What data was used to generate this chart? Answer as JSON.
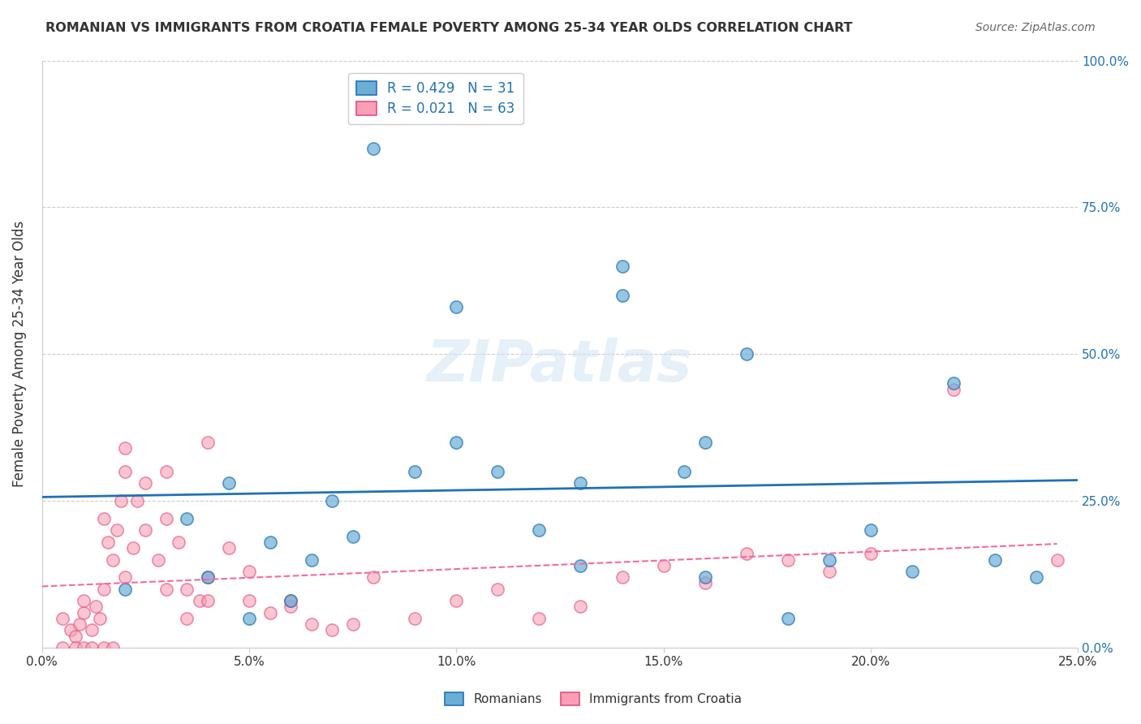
{
  "title": "ROMANIAN VS IMMIGRANTS FROM CROATIA FEMALE POVERTY AMONG 25-34 YEAR OLDS CORRELATION CHART",
  "source": "Source: ZipAtlas.com",
  "xlabel": "",
  "ylabel": "Female Poverty Among 25-34 Year Olds",
  "xlim": [
    0.0,
    0.25
  ],
  "ylim": [
    0.0,
    1.0
  ],
  "xtick_labels": [
    "0.0%",
    "5.0%",
    "10.0%",
    "15.0%",
    "20.0%",
    "25.0%"
  ],
  "xtick_vals": [
    0.0,
    0.05,
    0.1,
    0.15,
    0.2,
    0.25
  ],
  "ytick_labels": [
    "0.0%",
    "25.0%",
    "50.0%",
    "75.0%",
    "100.0%"
  ],
  "ytick_vals": [
    0.0,
    0.25,
    0.5,
    0.75,
    1.0
  ],
  "blue_color": "#6baed6",
  "pink_color": "#fa9fb5",
  "blue_line_color": "#2171b5",
  "pink_line_color": "#f768a1",
  "watermark": "ZIPatlas",
  "legend_r_blue": "R = 0.429",
  "legend_n_blue": "N = 31",
  "legend_r_pink": "R = 0.021",
  "legend_n_pink": "N = 63",
  "legend_label_blue": "Romanians",
  "legend_label_pink": "Immigrants from Croatia",
  "blue_scatter_x": [
    0.02,
    0.035,
    0.04,
    0.045,
    0.05,
    0.055,
    0.06,
    0.065,
    0.07,
    0.075,
    0.08,
    0.09,
    0.1,
    0.1,
    0.11,
    0.12,
    0.13,
    0.13,
    0.14,
    0.14,
    0.155,
    0.16,
    0.16,
    0.17,
    0.18,
    0.19,
    0.2,
    0.21,
    0.22,
    0.23,
    0.24
  ],
  "blue_scatter_y": [
    0.1,
    0.22,
    0.12,
    0.28,
    0.05,
    0.18,
    0.08,
    0.15,
    0.25,
    0.19,
    0.85,
    0.3,
    0.35,
    0.58,
    0.3,
    0.2,
    0.28,
    0.14,
    0.6,
    0.65,
    0.3,
    0.12,
    0.35,
    0.5,
    0.05,
    0.15,
    0.2,
    0.13,
    0.45,
    0.15,
    0.12
  ],
  "pink_scatter_x": [
    0.005,
    0.007,
    0.008,
    0.009,
    0.01,
    0.01,
    0.012,
    0.013,
    0.014,
    0.015,
    0.015,
    0.016,
    0.017,
    0.018,
    0.019,
    0.02,
    0.02,
    0.022,
    0.023,
    0.025,
    0.025,
    0.028,
    0.03,
    0.03,
    0.033,
    0.035,
    0.038,
    0.04,
    0.04,
    0.045,
    0.05,
    0.055,
    0.06,
    0.065,
    0.07,
    0.075,
    0.08,
    0.09,
    0.1,
    0.11,
    0.12,
    0.13,
    0.14,
    0.15,
    0.16,
    0.17,
    0.18,
    0.19,
    0.2,
    0.22,
    0.005,
    0.008,
    0.01,
    0.012,
    0.015,
    0.017,
    0.02,
    0.03,
    0.035,
    0.04,
    0.05,
    0.06,
    0.245
  ],
  "pink_scatter_y": [
    0.05,
    0.03,
    0.02,
    0.04,
    0.06,
    0.08,
    0.03,
    0.07,
    0.05,
    0.1,
    0.22,
    0.18,
    0.15,
    0.2,
    0.25,
    0.12,
    0.3,
    0.17,
    0.25,
    0.2,
    0.28,
    0.15,
    0.22,
    0.3,
    0.18,
    0.1,
    0.08,
    0.12,
    0.35,
    0.17,
    0.08,
    0.06,
    0.07,
    0.04,
    0.03,
    0.04,
    0.12,
    0.05,
    0.08,
    0.1,
    0.05,
    0.07,
    0.12,
    0.14,
    0.11,
    0.16,
    0.15,
    0.13,
    0.16,
    0.44,
    0.0,
    0.0,
    0.0,
    0.0,
    0.0,
    0.0,
    0.34,
    0.1,
    0.05,
    0.08,
    0.13,
    0.08,
    0.15
  ]
}
